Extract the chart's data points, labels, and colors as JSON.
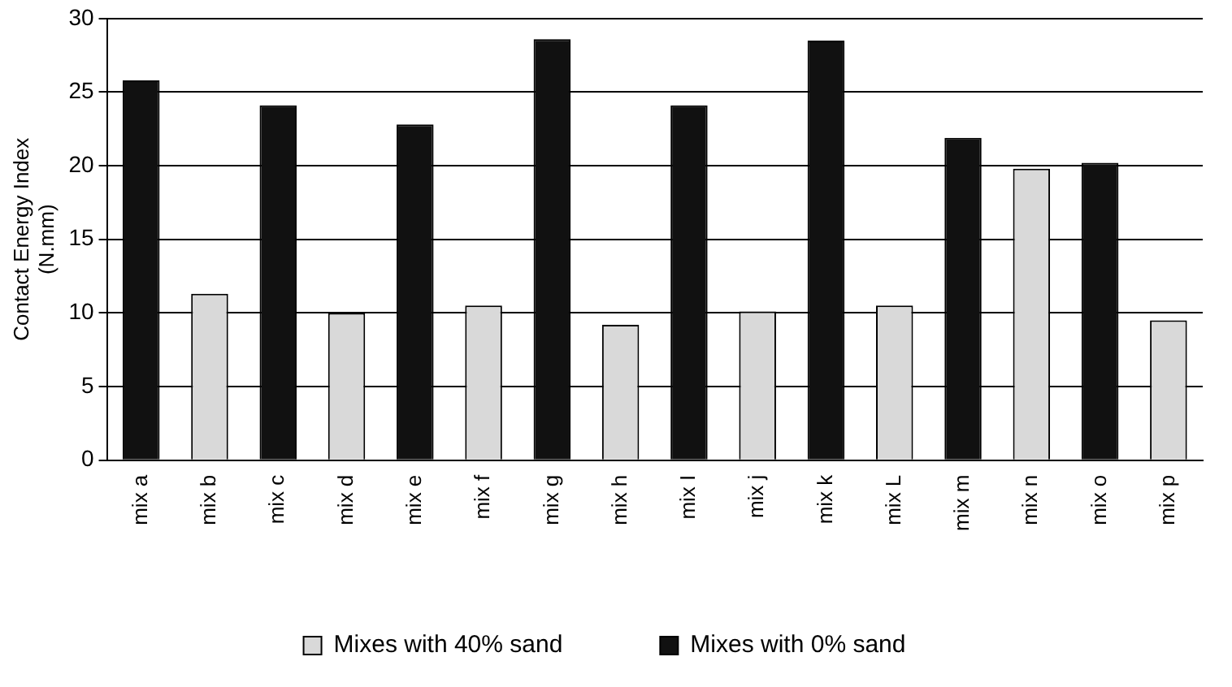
{
  "chart_data": {
    "type": "bar",
    "ylabel": "Contact Energy Index\n(N.mm)",
    "categories": [
      "mix a",
      "mix b",
      "mix c",
      "mix d",
      "mix e",
      "mix f",
      "mix g",
      "mix h",
      "mix I",
      "mix j",
      "mix k",
      "mix L",
      "mix m",
      "mix n",
      "mix o",
      "mix p"
    ],
    "series": [
      {
        "name": "Mixes with 40% sand",
        "color": "#d9d9d9",
        "values": [
          null,
          11.3,
          null,
          10.0,
          null,
          10.5,
          null,
          9.2,
          null,
          10.1,
          null,
          10.5,
          null,
          19.8,
          null,
          9.5
        ]
      },
      {
        "name": "Mixes with 0% sand",
        "color": "#111111",
        "values": [
          25.8,
          null,
          24.1,
          null,
          22.8,
          null,
          28.6,
          null,
          24.1,
          null,
          28.5,
          null,
          21.9,
          null,
          20.2,
          null
        ]
      }
    ],
    "ylim": [
      0,
      30
    ],
    "yticks": [
      0,
      5,
      10,
      15,
      20,
      25,
      30
    ],
    "grid": "y",
    "legend": "bottom"
  }
}
